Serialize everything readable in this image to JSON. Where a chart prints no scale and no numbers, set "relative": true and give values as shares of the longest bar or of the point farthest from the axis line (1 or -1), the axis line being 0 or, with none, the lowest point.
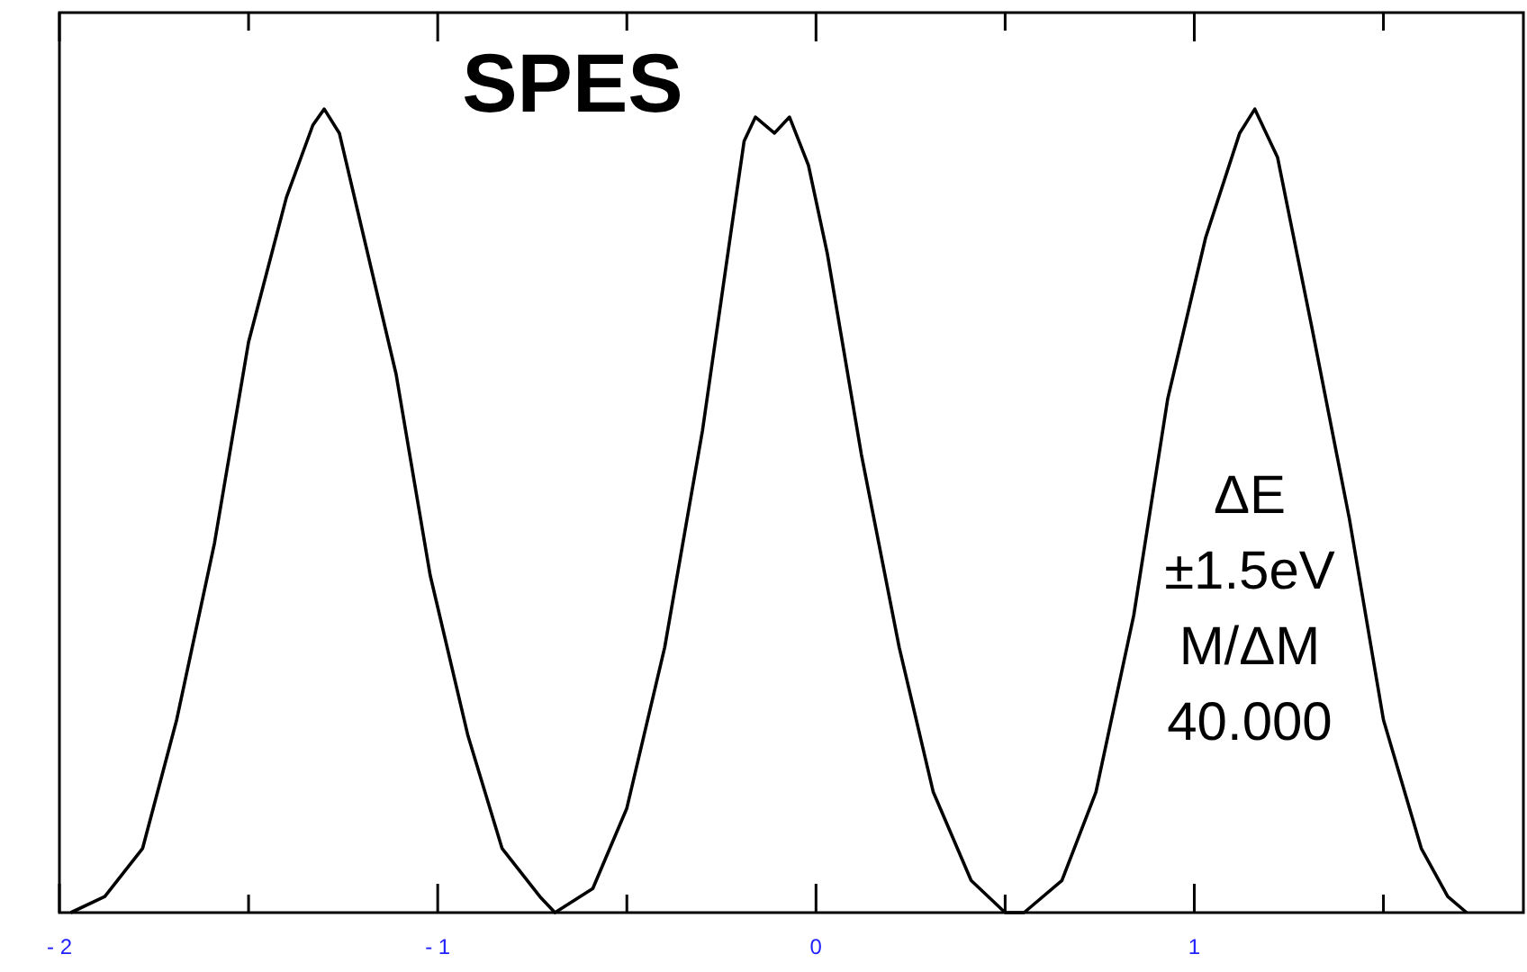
{
  "chart_data": {
    "type": "line",
    "relative": true,
    "xlim": [
      -2,
      1.87
    ],
    "xticks": [
      -2,
      {
        "value": -1.5,
        "label": null
      },
      -1,
      {
        "value": -0.5,
        "label": null
      },
      0,
      {
        "value": 0.5,
        "label": null
      },
      1,
      {
        "value": 1.5,
        "label": null
      }
    ],
    "annotations": [
      "SPES",
      "ΔE\n±1.5eV\nM/ΔM\n40.000"
    ],
    "series": [
      {
        "color": "#000000",
        "x": [
          -1.97,
          -1.88,
          -1.78,
          -1.69,
          -1.59,
          -1.5,
          -1.4,
          -1.33,
          -1.3,
          -1.26,
          -1.21,
          -1.11,
          -1.02,
          -0.92,
          -0.83,
          -0.73,
          -0.69,
          -0.59,
          -0.5,
          -0.4,
          -0.3,
          -0.23,
          -0.19,
          -0.16,
          -0.11,
          -0.07,
          -0.02,
          0.03,
          0.12,
          0.22,
          0.31,
          0.41,
          0.5,
          0.55,
          0.65,
          0.74,
          0.84,
          0.93,
          1.03,
          1.12,
          1.16,
          1.22,
          1.31,
          1.41,
          1.5,
          1.6,
          1.67,
          1.72
        ],
        "values": [
          0,
          0.02,
          0.08,
          0.24,
          0.46,
          0.71,
          0.89,
          0.98,
          1,
          0.97,
          0.87,
          0.67,
          0.42,
          0.22,
          0.08,
          0.02,
          0,
          0.03,
          0.13,
          0.33,
          0.6,
          0.83,
          0.96,
          0.99,
          0.97,
          0.99,
          0.93,
          0.82,
          0.57,
          0.33,
          0.15,
          0.04,
          0,
          0,
          0.04,
          0.15,
          0.37,
          0.64,
          0.84,
          0.97,
          1,
          0.94,
          0.73,
          0.49,
          0.24,
          0.08,
          0.02,
          0
        ]
      }
    ]
  }
}
